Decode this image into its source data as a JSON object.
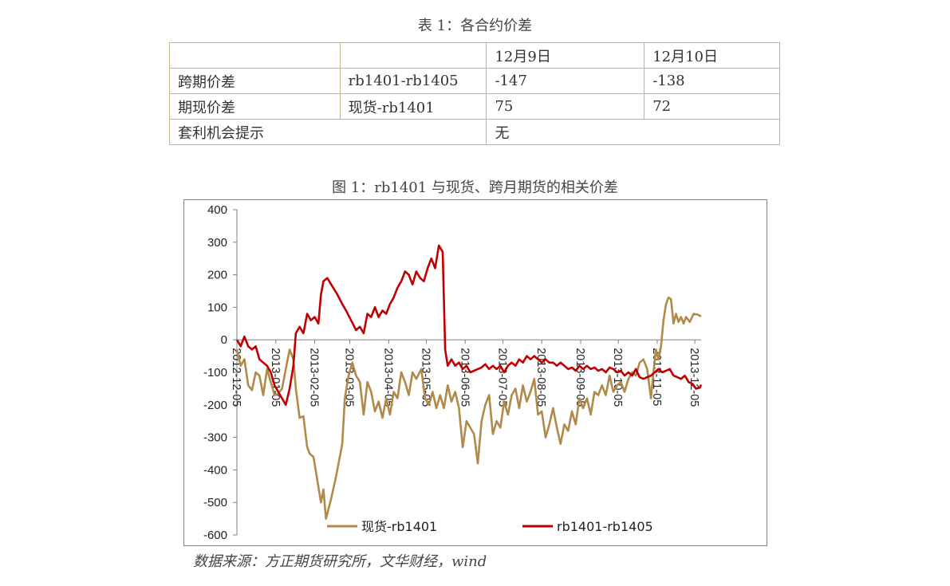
{
  "table": {
    "caption": "表 1：各合约价差",
    "header": [
      "",
      "",
      "12月9日",
      "12月10日"
    ],
    "rows": [
      {
        "label": "跨期价差",
        "contract": "rb1401-rb1405",
        "dec9": "-147",
        "dec10": "-138"
      },
      {
        "label": "期现价差",
        "contract": "现货-rb1401",
        "dec9": "75",
        "dec10": "72"
      }
    ],
    "arbitrage": {
      "label": "套利机会提示",
      "value": "无"
    }
  },
  "figure_caption": "图 1：rb1401 与现货、跨月期货的相关价差",
  "source": "数据来源：方正期货研究所，文华财经，wind",
  "chart_data": {
    "type": "line",
    "title": "",
    "xlabel": "",
    "ylabel": "",
    "ylim": [
      -600,
      400
    ],
    "yticks": [
      400,
      300,
      200,
      100,
      0,
      -100,
      -200,
      -300,
      -400,
      -500,
      -600
    ],
    "xlim": [
      "2012-12-05",
      "2013-12-10"
    ],
    "xticks": [
      "2012-12-05",
      "2013-01-05",
      "2013-02-05",
      "2013-03-05",
      "2013-04-05",
      "2013-05-05",
      "2013-06-05",
      "2013-07-05",
      "2013-08-05",
      "2013-09-05",
      "2013-10-05",
      "2013-11-05",
      "2013-12-05"
    ],
    "grid": false,
    "legend": "bottom",
    "series": [
      {
        "name": "现货-rb1401",
        "color": "#b08a48",
        "points": [
          [
            "2012-12-05",
            -30
          ],
          [
            "2012-12-08",
            -80
          ],
          [
            "2012-12-11",
            -60
          ],
          [
            "2012-12-14",
            -140
          ],
          [
            "2012-12-17",
            -155
          ],
          [
            "2012-12-20",
            -100
          ],
          [
            "2012-12-23",
            -110
          ],
          [
            "2012-12-26",
            -170
          ],
          [
            "2012-12-29",
            -90
          ],
          [
            "2013-01-01",
            -130
          ],
          [
            "2013-01-04",
            -170
          ],
          [
            "2013-01-07",
            -165
          ],
          [
            "2013-01-10",
            -150
          ],
          [
            "2013-01-13",
            -90
          ],
          [
            "2013-01-16",
            -30
          ],
          [
            "2013-01-19",
            -60
          ],
          [
            "2013-01-21",
            -150
          ],
          [
            "2013-01-24",
            -240
          ],
          [
            "2013-01-27",
            -235
          ],
          [
            "2013-01-30",
            -330
          ],
          [
            "2013-02-01",
            -350
          ],
          [
            "2013-02-04",
            -360
          ],
          [
            "2013-02-07",
            -430
          ],
          [
            "2013-02-10",
            -500
          ],
          [
            "2013-02-12",
            -460
          ],
          [
            "2013-02-14",
            -550
          ],
          [
            "2013-02-18",
            -490
          ],
          [
            "2013-02-22",
            -420
          ],
          [
            "2013-02-27",
            -320
          ],
          [
            "2013-03-01",
            -180
          ],
          [
            "2013-03-04",
            -110
          ],
          [
            "2013-03-07",
            -70
          ],
          [
            "2013-03-10",
            -110
          ],
          [
            "2013-03-13",
            -130
          ],
          [
            "2013-03-16",
            -230
          ],
          [
            "2013-03-19",
            -130
          ],
          [
            "2013-03-22",
            -160
          ],
          [
            "2013-03-25",
            -220
          ],
          [
            "2013-03-28",
            -190
          ],
          [
            "2013-03-31",
            -240
          ],
          [
            "2013-04-03",
            -180
          ],
          [
            "2013-04-06",
            -230
          ],
          [
            "2013-04-09",
            -160
          ],
          [
            "2013-04-12",
            -180
          ],
          [
            "2013-04-15",
            -100
          ],
          [
            "2013-04-18",
            -130
          ],
          [
            "2013-04-21",
            -170
          ],
          [
            "2013-04-24",
            -100
          ],
          [
            "2013-04-27",
            -120
          ],
          [
            "2013-05-01",
            -90
          ],
          [
            "2013-05-04",
            -180
          ],
          [
            "2013-05-07",
            -200
          ],
          [
            "2013-05-10",
            -160
          ],
          [
            "2013-05-13",
            -210
          ],
          [
            "2013-05-16",
            -170
          ],
          [
            "2013-05-19",
            -210
          ],
          [
            "2013-05-22",
            -140
          ],
          [
            "2013-05-25",
            -190
          ],
          [
            "2013-05-28",
            -160
          ],
          [
            "2013-05-31",
            -210
          ],
          [
            "2013-06-03",
            -330
          ],
          [
            "2013-06-06",
            -250
          ],
          [
            "2013-06-09",
            -270
          ],
          [
            "2013-06-12",
            -290
          ],
          [
            "2013-06-15",
            -380
          ],
          [
            "2013-06-18",
            -250
          ],
          [
            "2013-06-21",
            -200
          ],
          [
            "2013-06-24",
            -170
          ],
          [
            "2013-06-27",
            -290
          ],
          [
            "2013-06-30",
            -250
          ],
          [
            "2013-07-03",
            -270
          ],
          [
            "2013-07-06",
            -190
          ],
          [
            "2013-07-09",
            -230
          ],
          [
            "2013-07-12",
            -170
          ],
          [
            "2013-07-15",
            -150
          ],
          [
            "2013-07-18",
            -210
          ],
          [
            "2013-07-21",
            -140
          ],
          [
            "2013-07-24",
            -190
          ],
          [
            "2013-07-27",
            -160
          ],
          [
            "2013-07-30",
            -120
          ],
          [
            "2013-08-02",
            -230
          ],
          [
            "2013-08-05",
            -220
          ],
          [
            "2013-08-08",
            -300
          ],
          [
            "2013-08-11",
            -260
          ],
          [
            "2013-08-14",
            -210
          ],
          [
            "2013-08-17",
            -270
          ],
          [
            "2013-08-20",
            -320
          ],
          [
            "2013-08-23",
            -260
          ],
          [
            "2013-08-26",
            -280
          ],
          [
            "2013-08-29",
            -220
          ],
          [
            "2013-09-01",
            -260
          ],
          [
            "2013-09-04",
            -180
          ],
          [
            "2013-09-07",
            -210
          ],
          [
            "2013-09-10",
            -180
          ],
          [
            "2013-09-13",
            -230
          ],
          [
            "2013-09-16",
            -160
          ],
          [
            "2013-09-19",
            -170
          ],
          [
            "2013-09-22",
            -140
          ],
          [
            "2013-09-25",
            -170
          ],
          [
            "2013-09-28",
            -110
          ],
          [
            "2013-10-01",
            -160
          ],
          [
            "2013-10-04",
            -140
          ],
          [
            "2013-10-07",
            -130
          ],
          [
            "2013-10-10",
            -160
          ],
          [
            "2013-10-13",
            -120
          ],
          [
            "2013-10-16",
            -100
          ],
          [
            "2013-10-19",
            -110
          ],
          [
            "2013-10-22",
            -70
          ],
          [
            "2013-10-25",
            -60
          ],
          [
            "2013-10-28",
            -90
          ],
          [
            "2013-10-31",
            -180
          ],
          [
            "2013-11-02",
            -100
          ],
          [
            "2013-11-04",
            -30
          ],
          [
            "2013-11-06",
            -60
          ],
          [
            "2013-11-08",
            -20
          ],
          [
            "2013-11-10",
            60
          ],
          [
            "2013-11-12",
            110
          ],
          [
            "2013-11-14",
            130
          ],
          [
            "2013-11-16",
            125
          ],
          [
            "2013-11-18",
            50
          ],
          [
            "2013-11-20",
            80
          ],
          [
            "2013-11-22",
            55
          ],
          [
            "2013-11-24",
            70
          ],
          [
            "2013-11-26",
            50
          ],
          [
            "2013-11-28",
            70
          ],
          [
            "2013-12-01",
            55
          ],
          [
            "2013-12-04",
            80
          ],
          [
            "2013-12-07",
            78
          ],
          [
            "2013-12-10",
            72
          ]
        ]
      },
      {
        "name": "rb1401-rb1405",
        "color": "#c00000",
        "points": [
          [
            "2012-12-05",
            0
          ],
          [
            "2012-12-08",
            -20
          ],
          [
            "2012-12-11",
            10
          ],
          [
            "2012-12-14",
            -20
          ],
          [
            "2012-12-17",
            -30
          ],
          [
            "2012-12-20",
            -20
          ],
          [
            "2012-12-23",
            -60
          ],
          [
            "2012-12-26",
            -70
          ],
          [
            "2012-12-29",
            -80
          ],
          [
            "2013-01-01",
            -100
          ],
          [
            "2013-01-04",
            -140
          ],
          [
            "2013-01-07",
            -160
          ],
          [
            "2013-01-10",
            -180
          ],
          [
            "2013-01-13",
            -200
          ],
          [
            "2013-01-16",
            -150
          ],
          [
            "2013-01-19",
            -80
          ],
          [
            "2013-01-21",
            20
          ],
          [
            "2013-01-24",
            40
          ],
          [
            "2013-01-27",
            20
          ],
          [
            "2013-01-30",
            80
          ],
          [
            "2013-02-02",
            60
          ],
          [
            "2013-02-05",
            70
          ],
          [
            "2013-02-08",
            50
          ],
          [
            "2013-02-10",
            140
          ],
          [
            "2013-02-12",
            180
          ],
          [
            "2013-02-15",
            190
          ],
          [
            "2013-02-19",
            165
          ],
          [
            "2013-02-23",
            140
          ],
          [
            "2013-02-27",
            110
          ],
          [
            "2013-03-02",
            90
          ],
          [
            "2013-03-06",
            60
          ],
          [
            "2013-03-10",
            30
          ],
          [
            "2013-03-13",
            40
          ],
          [
            "2013-03-16",
            20
          ],
          [
            "2013-03-19",
            80
          ],
          [
            "2013-03-22",
            70
          ],
          [
            "2013-03-25",
            100
          ],
          [
            "2013-03-28",
            70
          ],
          [
            "2013-03-31",
            90
          ],
          [
            "2013-04-03",
            80
          ],
          [
            "2013-04-06",
            110
          ],
          [
            "2013-04-09",
            130
          ],
          [
            "2013-04-12",
            160
          ],
          [
            "2013-04-15",
            180
          ],
          [
            "2013-04-18",
            210
          ],
          [
            "2013-04-21",
            200
          ],
          [
            "2013-04-24",
            170
          ],
          [
            "2013-04-27",
            210
          ],
          [
            "2013-04-30",
            190
          ],
          [
            "2013-05-03",
            180
          ],
          [
            "2013-05-06",
            220
          ],
          [
            "2013-05-09",
            250
          ],
          [
            "2013-05-12",
            220
          ],
          [
            "2013-05-15",
            290
          ],
          [
            "2013-05-18",
            270
          ],
          [
            "2013-05-20",
            -30
          ],
          [
            "2013-05-22",
            -80
          ],
          [
            "2013-05-25",
            -60
          ],
          [
            "2013-05-28",
            -80
          ],
          [
            "2013-05-31",
            -70
          ],
          [
            "2013-06-03",
            -90
          ],
          [
            "2013-06-06",
            -80
          ],
          [
            "2013-06-09",
            -100
          ],
          [
            "2013-06-12",
            -95
          ],
          [
            "2013-06-15",
            -90
          ],
          [
            "2013-06-18",
            -85
          ],
          [
            "2013-06-21",
            -75
          ],
          [
            "2013-06-24",
            -90
          ],
          [
            "2013-06-27",
            -80
          ],
          [
            "2013-06-30",
            -90
          ],
          [
            "2013-07-03",
            -80
          ],
          [
            "2013-07-06",
            -100
          ],
          [
            "2013-07-09",
            -80
          ],
          [
            "2013-07-12",
            -70
          ],
          [
            "2013-07-15",
            -80
          ],
          [
            "2013-07-18",
            -60
          ],
          [
            "2013-07-21",
            -70
          ],
          [
            "2013-07-24",
            -50
          ],
          [
            "2013-07-27",
            -60
          ],
          [
            "2013-07-30",
            -50
          ],
          [
            "2013-08-02",
            -60
          ],
          [
            "2013-08-05",
            -70
          ],
          [
            "2013-08-08",
            -60
          ],
          [
            "2013-08-11",
            -70
          ],
          [
            "2013-08-14",
            -70
          ],
          [
            "2013-08-17",
            -80
          ],
          [
            "2013-08-20",
            -70
          ],
          [
            "2013-08-23",
            -80
          ],
          [
            "2013-08-26",
            -90
          ],
          [
            "2013-08-29",
            -85
          ],
          [
            "2013-09-01",
            -95
          ],
          [
            "2013-09-04",
            -80
          ],
          [
            "2013-09-07",
            -90
          ],
          [
            "2013-09-10",
            -80
          ],
          [
            "2013-09-13",
            -90
          ],
          [
            "2013-09-16",
            -85
          ],
          [
            "2013-09-19",
            -95
          ],
          [
            "2013-09-22",
            -90
          ],
          [
            "2013-09-25",
            -100
          ],
          [
            "2013-09-28",
            -85
          ],
          [
            "2013-10-01",
            -90
          ],
          [
            "2013-10-04",
            -100
          ],
          [
            "2013-10-07",
            -95
          ],
          [
            "2013-10-10",
            -110
          ],
          [
            "2013-10-13",
            -100
          ],
          [
            "2013-10-16",
            -110
          ],
          [
            "2013-10-19",
            -90
          ],
          [
            "2013-10-22",
            -115
          ],
          [
            "2013-10-25",
            -120
          ],
          [
            "2013-10-28",
            -115
          ],
          [
            "2013-10-31",
            -110
          ],
          [
            "2013-11-03",
            -100
          ],
          [
            "2013-11-06",
            -90
          ],
          [
            "2013-11-09",
            -100
          ],
          [
            "2013-11-12",
            -95
          ],
          [
            "2013-11-15",
            -90
          ],
          [
            "2013-11-18",
            -110
          ],
          [
            "2013-11-21",
            -115
          ],
          [
            "2013-11-24",
            -120
          ],
          [
            "2013-11-27",
            -110
          ],
          [
            "2013-11-30",
            -130
          ],
          [
            "2013-12-03",
            -135
          ],
          [
            "2013-12-06",
            -150
          ],
          [
            "2013-12-09",
            -147
          ],
          [
            "2013-12-10",
            -138
          ]
        ]
      }
    ]
  }
}
